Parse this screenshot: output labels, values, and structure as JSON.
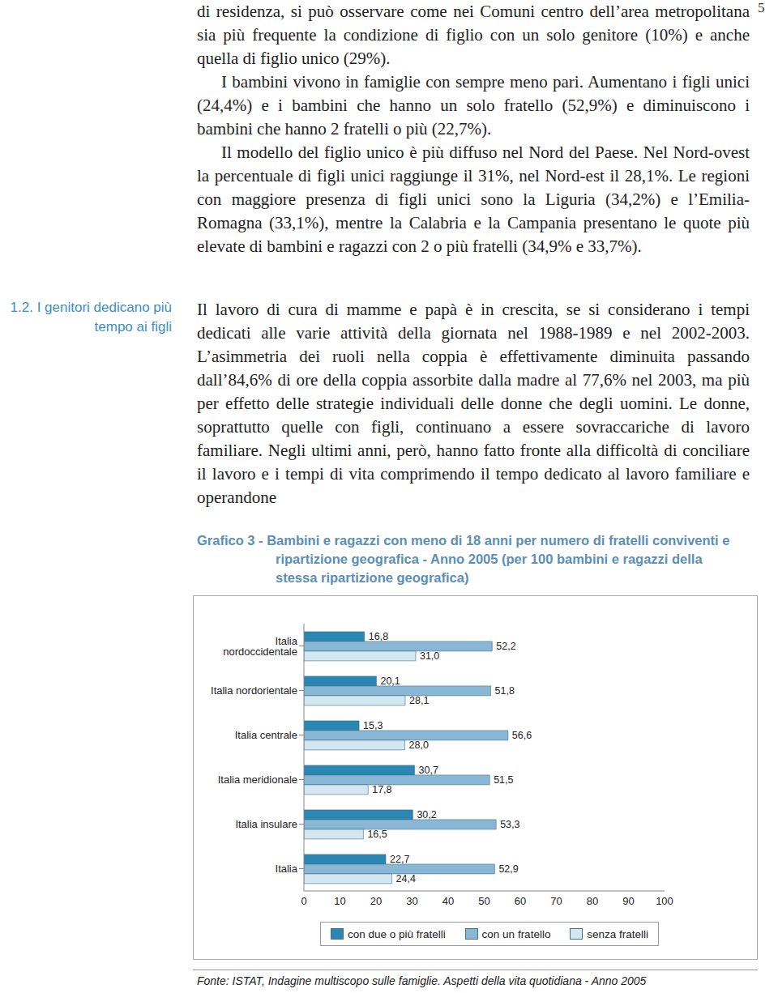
{
  "page_number": "5",
  "paragraphs": [
    "di residenza, si può osservare come nei Comuni centro dell’area metropolitana sia più frequente la condizione di figlio con un solo genitore (10%) e anche quella di figlio unico (29%).",
    "I bambini vivono in famiglie con sempre meno pari. Aumentano i figli unici (24,4%) e i bambini che hanno un solo fratello (52,9%) e diminuiscono i bambini che hanno 2 fratelli o più (22,7%).",
    "Il modello del figlio unico è più diffuso nel Nord del Paese. Nel Nord-ovest la percentuale di figli unici raggiunge il 31%, nel Nord-est il 28,1%. Le regioni con maggiore presenza di figli unici sono la Liguria (34,2%) e l’Emilia-Romagna (33,1%), mentre la Calabria e la Campania presentano le quote più elevate di bambini e ragazzi con 2 o più fratelli (34,9% e 33,7%)."
  ],
  "section": {
    "heading": "1.2. I genitori dedicano più tempo ai figli",
    "paragraphs": [
      "Il lavoro di cura di mamme e papà è in crescita, se si considerano i tempi dedicati alle varie attività della giornata nel 1988-1989 e nel 2002-2003. L’asimmetria dei ruoli nella coppia è effettivamente diminuita passando dall’84,6% di ore della coppia assorbite dalla madre al 77,6% nel 2003, ma più per effetto delle strategie individuali delle donne che degli uomini. Le donne, soprattutto quelle con figli, continuano a essere sovraccariche di lavoro familiare. Negli ultimi anni, però, hanno fatto fronte alla difficoltà di conciliare il lavoro e i tempi di vita comprimendo il tempo dedicato al lavoro familiare e operandone"
    ]
  },
  "chart_data": {
    "type": "bar",
    "orientation": "horizontal",
    "title": "Grafico 3 - Bambini e ragazzi con meno di 18 anni per numero di fratelli conviventi e ripartizione geografica - Anno 2005 (per 100 bambini e ragazzi della stessa ripartizione geografica)",
    "categories": [
      "Italia nordoccidentale",
      "Italia nordorientale",
      "Italia centrale",
      "Italia meridionale",
      "Italia insulare",
      "Italia"
    ],
    "series": [
      {
        "name": "con due o più fratelli",
        "color": "#2a86b2",
        "values": [
          16.8,
          20.1,
          15.3,
          30.7,
          30.2,
          22.7
        ],
        "value_labels": [
          "16,8",
          "20,1",
          "15,3",
          "30,7",
          "30,2",
          "22,7"
        ]
      },
      {
        "name": "con un fratello",
        "color": "#88b8d6",
        "values": [
          52.2,
          51.8,
          56.6,
          51.5,
          53.3,
          52.9
        ],
        "value_labels": [
          "52,2",
          "51,8",
          "56,6",
          "51,5",
          "53,3",
          "52,9"
        ]
      },
      {
        "name": "senza fratelli",
        "color": "#d3e7f3",
        "values": [
          31.0,
          28.1,
          28.0,
          17.8,
          16.5,
          24.4
        ],
        "value_labels": [
          "31,0",
          "28,1",
          "28,0",
          "17,8",
          "16,5",
          "24,4"
        ]
      }
    ],
    "xlim": [
      0,
      100
    ],
    "xticks": [
      0,
      10,
      20,
      30,
      40,
      50,
      60,
      70,
      80,
      90,
      100
    ],
    "data_labels": true,
    "legend": "bottom"
  },
  "source": "Fonte: ISTAT, Indagine multiscopo sulle famiglie. Aspetti della vita quotidiana - Anno 2005"
}
